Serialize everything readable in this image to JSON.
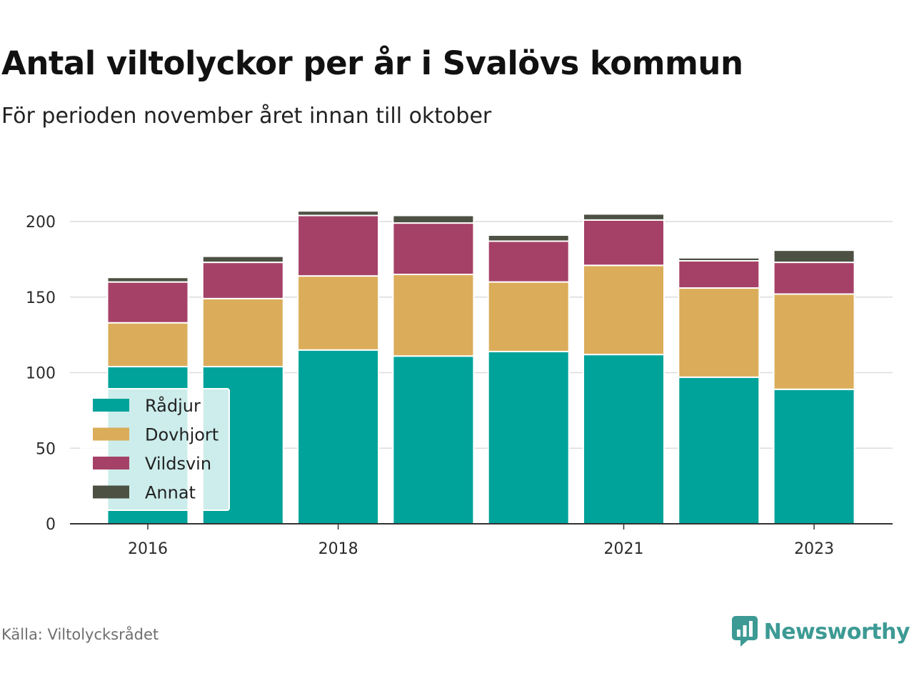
{
  "title": "Antal viltolyckor per år i Svalövs kommun",
  "subtitle": "För perioden november året innan till oktober",
  "source": "Källa: Viltolycksrådet",
  "brand": {
    "name": "Newsworthy",
    "icon": "newsworthy-logo-icon",
    "color": "#3d9a94"
  },
  "chart_data": {
    "type": "bar",
    "stacked": true,
    "categories": [
      "2016",
      "2017",
      "2018",
      "2019",
      "2020",
      "2021",
      "2022",
      "2023"
    ],
    "x_tick_labels": [
      "2016",
      "",
      "2018",
      "",
      "",
      "2021",
      "",
      "2023"
    ],
    "y_ticks": [
      "0",
      "50",
      "100",
      "150",
      "200"
    ],
    "ylim": [
      0,
      200
    ],
    "grid": true,
    "legend_position": "bottom-left",
    "series": [
      {
        "name": "Rådjur",
        "color": "#00a39a",
        "values": [
          104,
          104,
          115,
          111,
          114,
          112,
          97,
          89
        ]
      },
      {
        "name": "Dovhjort",
        "color": "#dbad5a",
        "values": [
          29,
          45,
          49,
          54,
          46,
          59,
          59,
          63
        ]
      },
      {
        "name": "Vildsvin",
        "color": "#a54167",
        "values": [
          27,
          24,
          40,
          34,
          27,
          30,
          18,
          21
        ]
      },
      {
        "name": "Annat",
        "color": "#4d5143",
        "values": [
          3,
          4,
          3,
          5,
          4,
          4,
          2,
          8
        ]
      }
    ]
  }
}
